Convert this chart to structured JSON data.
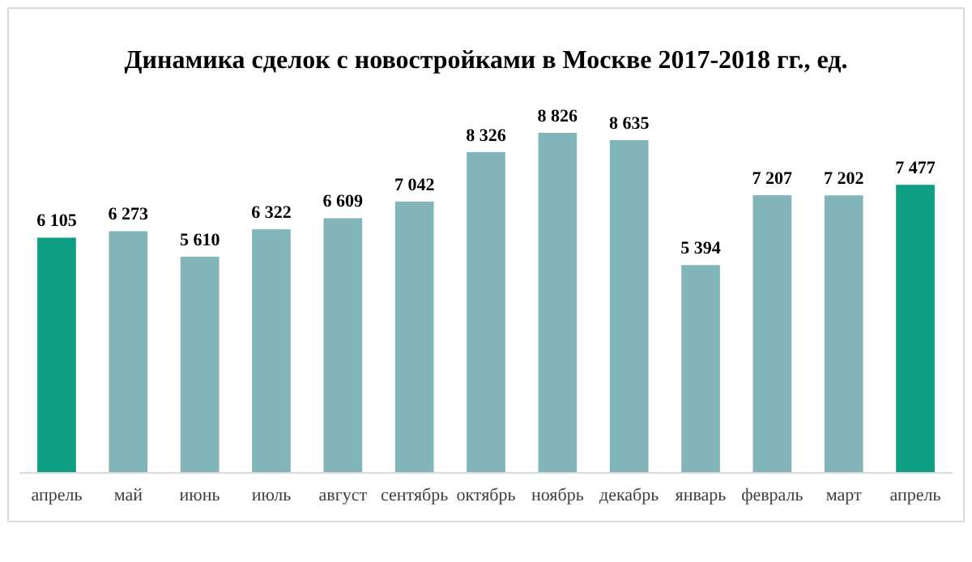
{
  "chart_data": {
    "type": "bar",
    "title": "Динамика сделок с новостройками в Москве 2017-2018 гг., ед.",
    "categories": [
      "апрель",
      "май",
      "июнь",
      "июль",
      "август",
      "сентябрь",
      "октябрь",
      "ноябрь",
      "декабрь",
      "январь",
      "февраль",
      "март",
      "апрель"
    ],
    "values": [
      6105,
      6273,
      5610,
      6322,
      6609,
      7042,
      8326,
      8826,
      8635,
      5394,
      7207,
      7202,
      7477
    ],
    "colors": [
      "#0e9e82",
      "#82b5ba",
      "#82b5ba",
      "#82b5ba",
      "#82b5ba",
      "#82b5ba",
      "#82b5ba",
      "#82b5ba",
      "#82b5ba",
      "#82b5ba",
      "#82b5ba",
      "#82b5ba",
      "#0e9e82"
    ],
    "value_labels": [
      "6 105",
      "6 273",
      "5 610",
      "6 322",
      "6 609",
      "7 042",
      "8 326",
      "8 826",
      "8 635",
      "5 394",
      "7 207",
      "7 202",
      "7 477"
    ]
  }
}
